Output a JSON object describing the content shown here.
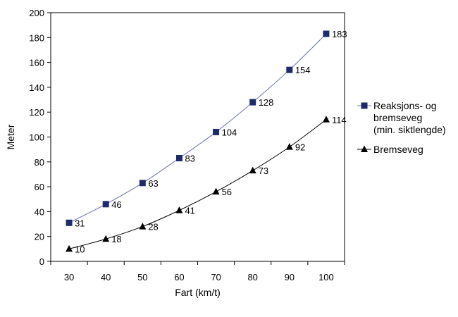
{
  "chart_data": {
    "type": "line",
    "title": "",
    "xlabel": "Fart (km/t)",
    "ylabel": "Meter",
    "x": [
      30,
      40,
      50,
      60,
      70,
      80,
      90,
      100
    ],
    "xlim": [
      25,
      105
    ],
    "ylim": [
      0,
      200
    ],
    "yticks": [
      0,
      20,
      40,
      60,
      80,
      100,
      120,
      140,
      160,
      180,
      200
    ],
    "grid": false,
    "legend_position": "right",
    "series": [
      {
        "name_lines": [
          "Reaksjons- og",
          "bremseveg",
          "(min. siktlengde)"
        ],
        "marker": "square",
        "color": "#1f2a6b",
        "line_color": "#6a74b0",
        "values": [
          31,
          46,
          63,
          83,
          104,
          128,
          154,
          183
        ]
      },
      {
        "name_lines": [
          "Bremseveg"
        ],
        "marker": "triangle",
        "color": "#000000",
        "line_color": "#000000",
        "values": [
          10,
          18,
          28,
          41,
          56,
          73,
          92,
          114
        ]
      }
    ]
  }
}
